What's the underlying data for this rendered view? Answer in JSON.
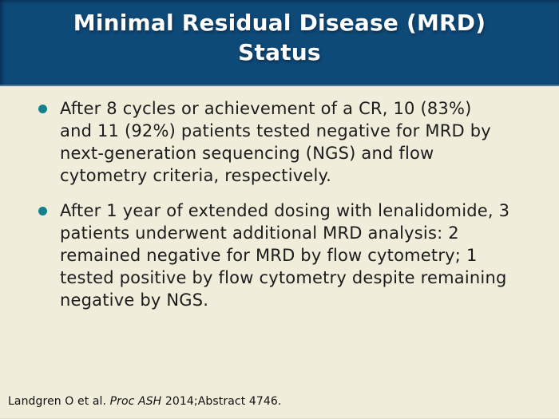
{
  "slide": {
    "title": "Minimal Residual Disease (MRD)\nStatus",
    "bullets": [
      {
        "lines": [
          "After 8 cycles or achievement of a CR, 10 (83%)",
          "and 11 (92%) patients tested negative for MRD by",
          "next-generation sequencing (NGS) and flow",
          "cytometry criteria, respectively."
        ]
      },
      {
        "lines": [
          "After 1 year of extended dosing with lenalidomide, 3",
          "patients underwent additional MRD analysis: 2",
          "remained negative for MRD by flow cytometry; 1",
          "tested positive by flow cytometry despite remaining",
          "negative by NGS."
        ]
      }
    ],
    "citation": {
      "segments": [
        {
          "text": "Landgren O et al. ",
          "italic": false
        },
        {
          "text": "Proc ASH",
          "italic": true
        },
        {
          "text": " 2014;Abstract 4746.",
          "italic": false
        }
      ]
    },
    "colors": {
      "band_navy": "#0e4a78",
      "band_edge_dark": "#0a3055",
      "separator_blue": "#52749a",
      "body_cream": "#f0edda",
      "bullet_teal": "#15808e",
      "text_dark": "#1c1c1c",
      "title_white": "#ffffff"
    }
  }
}
